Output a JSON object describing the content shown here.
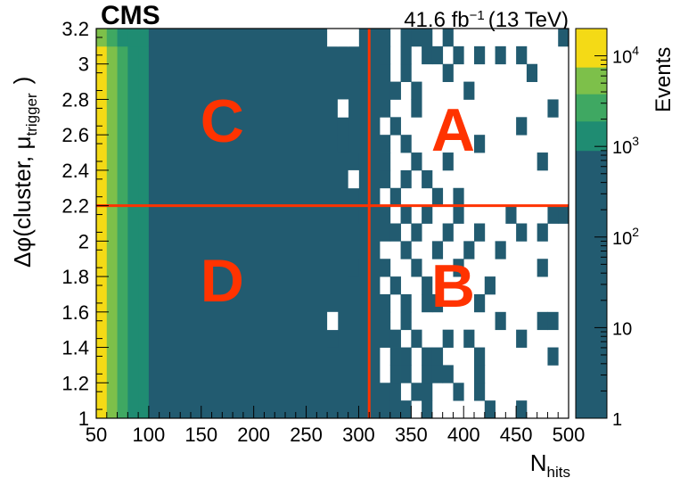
{
  "chart_data": {
    "type": "heatmap",
    "experiment_label": "CMS",
    "lumi_label": "41.6 fb",
    "lumi_exponent": "−1",
    "energy_label": "(13 TeV)",
    "xlabel": "N",
    "xlabel_subscript": "hits",
    "ylabel": "Δφ(cluster, μ",
    "ylabel_subscript": "trigger",
    "ylabel_close": ")",
    "zlabel": "Events",
    "xlim": [
      50,
      500
    ],
    "ylim": [
      1,
      3.2
    ],
    "zlim": [
      1,
      20000
    ],
    "zscale": "log",
    "x_ticks": [
      "50",
      "100",
      "150",
      "200",
      "250",
      "300",
      "350",
      "400",
      "450",
      "500"
    ],
    "y_ticks": [
      "1",
      "1.2",
      "1.4",
      "1.6",
      "1.8",
      "2",
      "2.2",
      "2.4",
      "2.6",
      "2.8",
      "3",
      "3.2"
    ],
    "z_ticks": [
      {
        "value": 1,
        "base": "1",
        "exp": ""
      },
      {
        "value": 10,
        "base": "10",
        "exp": ""
      },
      {
        "value": 100,
        "base": "10",
        "exp": "2"
      },
      {
        "value": 1000,
        "base": "10",
        "exp": "3"
      },
      {
        "value": 10000,
        "base": "10",
        "exp": "4"
      }
    ],
    "palette": {
      "low": "#225b70",
      "band_green_dark": "#1f8c72",
      "band_green": "#3fa862",
      "band_lightgreen": "#7dc04a",
      "band_yellow": "#f4da16",
      "empty": "#ffffff",
      "selection_lines": "#ff3300",
      "region_label": "#ff3300"
    },
    "colorbar_levels": [
      {
        "from": 1,
        "to": 900,
        "color": "#225b70"
      },
      {
        "from": 900,
        "to": 1900,
        "color": "#1f8c72"
      },
      {
        "from": 1900,
        "to": 3800,
        "color": "#3fa862"
      },
      {
        "from": 3800,
        "to": 7500,
        "color": "#7dc04a"
      },
      {
        "from": 7500,
        "to": 20000,
        "color": "#f4da16"
      }
    ],
    "bins": {
      "x_width": 10,
      "y_width": 0.1,
      "dense_columns": [
        {
          "x0": 50,
          "x1": 60,
          "color": "#f4da16"
        },
        {
          "x0": 60,
          "x1": 70,
          "color": "#7dc04a"
        },
        {
          "x0": 70,
          "x1": 80,
          "color": "#3fa862"
        },
        {
          "x0": 80,
          "x1": 90,
          "color": "#1f8c72"
        },
        {
          "x0": 90,
          "x1": 100,
          "color": "#1f8c72"
        }
      ],
      "top_row_override": [
        {
          "x0": 50,
          "x1": 60,
          "color": "#7dc04a"
        },
        {
          "x0": 60,
          "x1": 70,
          "color": "#3fa862"
        },
        {
          "x0": 70,
          "x1": 80,
          "color": "#1f8c72"
        },
        {
          "x0": 80,
          "x1": 100,
          "color": "#1f8c72"
        }
      ],
      "filled_region": {
        "x0": 100,
        "x1": 310,
        "y0": 1,
        "y1": 3.2
      },
      "filled_rows_partial": [
        {
          "y0": 3.1,
          "y1": 3.2,
          "x0": 100,
          "x1": 270
        },
        {
          "y0": 3.1,
          "y1": 3.2,
          "x0": 300,
          "x1": 310
        }
      ],
      "sparse_cells": [
        [
          320,
          1.0
        ],
        [
          320,
          1.1
        ],
        [
          330,
          1.0
        ],
        [
          330,
          1.1
        ],
        [
          330,
          1.2
        ],
        [
          330,
          1.3
        ],
        [
          340,
          1.0
        ],
        [
          340,
          1.2
        ],
        [
          350,
          1.1
        ],
        [
          360,
          1.0
        ],
        [
          360,
          1.1
        ],
        [
          360,
          1.2
        ],
        [
          370,
          1.2
        ],
        [
          380,
          1.2
        ],
        [
          390,
          1.1
        ],
        [
          410,
          1.1
        ],
        [
          410,
          1.2
        ],
        [
          420,
          1.0
        ],
        [
          450,
          1.0
        ],
        [
          320,
          1.4
        ],
        [
          320,
          1.5
        ],
        [
          330,
          1.4
        ],
        [
          340,
          1.3
        ],
        [
          340,
          1.5
        ],
        [
          350,
          1.4
        ],
        [
          360,
          1.3
        ],
        [
          370,
          1.3
        ],
        [
          360,
          1.6
        ],
        [
          380,
          1.4
        ],
        [
          400,
          1.4
        ],
        [
          410,
          1.3
        ],
        [
          430,
          1.5
        ],
        [
          450,
          1.4
        ],
        [
          480,
          1.3
        ],
        [
          480,
          1.5
        ],
        [
          470,
          1.5
        ],
        [
          320,
          1.6
        ],
        [
          320,
          1.8
        ],
        [
          330,
          1.7
        ],
        [
          340,
          1.6
        ],
        [
          340,
          1.9
        ],
        [
          350,
          1.8
        ],
        [
          360,
          1.7
        ],
        [
          370,
          1.6
        ],
        [
          370,
          1.9
        ],
        [
          390,
          1.8
        ],
        [
          400,
          1.9
        ],
        [
          410,
          1.6
        ],
        [
          420,
          1.7
        ],
        [
          430,
          1.9
        ],
        [
          470,
          1.8
        ],
        [
          470,
          2.0
        ],
        [
          320,
          2.0
        ],
        [
          320,
          2.1
        ],
        [
          330,
          2.0
        ],
        [
          340,
          2.1
        ],
        [
          350,
          2.0
        ],
        [
          360,
          2.1
        ],
        [
          380,
          2.0
        ],
        [
          390,
          2.1
        ],
        [
          410,
          2.0
        ],
        [
          440,
          2.1
        ],
        [
          450,
          2.0
        ],
        [
          480,
          2.1
        ],
        [
          490,
          2.1
        ],
        [
          320,
          2.3
        ],
        [
          320,
          2.4
        ],
        [
          320,
          2.5
        ],
        [
          330,
          2.2
        ],
        [
          330,
          2.6
        ],
        [
          340,
          2.3
        ],
        [
          340,
          2.5
        ],
        [
          350,
          2.4
        ],
        [
          350,
          2.7
        ],
        [
          360,
          2.3
        ],
        [
          370,
          2.2
        ],
        [
          380,
          2.4
        ],
        [
          390,
          2.2
        ],
        [
          410,
          2.5
        ],
        [
          450,
          2.6
        ],
        [
          470,
          2.4
        ],
        [
          480,
          2.7
        ],
        [
          320,
          2.7
        ],
        [
          320,
          2.8
        ],
        [
          320,
          2.9
        ],
        [
          320,
          3.0
        ],
        [
          330,
          2.8
        ],
        [
          340,
          2.9
        ],
        [
          340,
          3.0
        ],
        [
          350,
          2.8
        ],
        [
          360,
          3.0
        ],
        [
          370,
          3.0
        ],
        [
          380,
          2.9
        ],
        [
          390,
          3.0
        ],
        [
          400,
          2.8
        ],
        [
          410,
          3.0
        ],
        [
          430,
          3.0
        ],
        [
          450,
          3.0
        ],
        [
          460,
          2.9
        ],
        [
          320,
          3.1
        ],
        [
          340,
          3.1
        ],
        [
          350,
          3.1
        ],
        [
          360,
          3.1
        ],
        [
          380,
          3.1
        ],
        [
          490,
          3.1
        ],
        [
          280,
          2.5
        ],
        [
          280,
          2.6
        ],
        [
          290,
          2.1
        ],
        [
          290,
          2.2
        ],
        [
          290,
          2.4
        ],
        [
          290,
          1.8
        ],
        [
          300,
          2.9
        ],
        [
          270,
          1.4
        ],
        [
          300,
          3.1
        ]
      ]
    },
    "selection_lines": {
      "x": 310,
      "y": 2.2
    },
    "regions": [
      {
        "label": "C",
        "x": 170,
        "y": 2.65
      },
      {
        "label": "A",
        "x": 390,
        "y": 2.6
      },
      {
        "label": "D",
        "x": 170,
        "y": 1.75
      },
      {
        "label": "B",
        "x": 390,
        "y": 1.72
      }
    ]
  }
}
